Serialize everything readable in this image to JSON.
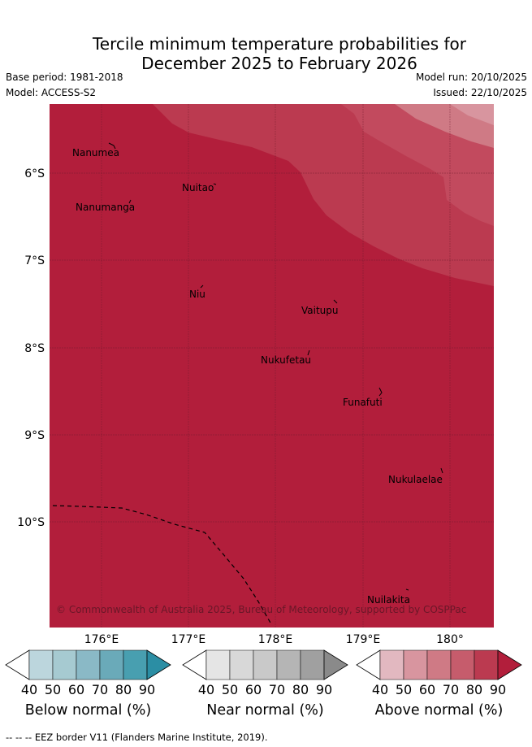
{
  "title": {
    "line1": "Tercile minimum temperature probabilities for",
    "line2": "December 2025 to February 2026"
  },
  "meta": {
    "base_period": "Base period: 1981-2018",
    "model": "Model: ACCESS-S2",
    "model_run": "Model run: 20/10/2025",
    "issued": "Issued: 22/10/2025"
  },
  "axes": {
    "lat_labels": [
      "6°S",
      "7°S",
      "8°S",
      "9°S",
      "10°S"
    ],
    "lon_labels": [
      "176°E",
      "177°E",
      "178°E",
      "179°E",
      "180°"
    ]
  },
  "places": [
    "Nanumea",
    "Nuitao",
    "Nanumanga",
    "Niu",
    "Vaitupu",
    "Nukufetau",
    "Funafuti",
    "Nukulaelae",
    "Nuilakita"
  ],
  "copyright": "© Commonwealth of Australia 2025, Bureau of Meteorology, supported by COSPPac",
  "colorbars": [
    {
      "name": "Below normal (%)",
      "ticks": [
        "40",
        "50",
        "60",
        "70",
        "80",
        "90"
      ],
      "colors": [
        "#ffffff",
        "#bcd6dd",
        "#a6cad1",
        "#8ab9c6",
        "#6aaab9",
        "#489fb0",
        "#2b8ea4"
      ]
    },
    {
      "name": "Near normal (%)",
      "ticks": [
        "40",
        "50",
        "60",
        "70",
        "80",
        "90"
      ],
      "colors": [
        "#ffffff",
        "#e5e5e5",
        "#d8d8d8",
        "#c9c9c9",
        "#b5b5b5",
        "#a0a0a0",
        "#8a8a8a"
      ]
    },
    {
      "name": "Above normal (%)",
      "ticks": [
        "40",
        "50",
        "60",
        "70",
        "80",
        "90"
      ],
      "colors": [
        "#ffffff",
        "#e2b8c0",
        "#d8959f",
        "#cf7a85",
        "#c65c6c",
        "#bb3a50",
        "#b21e3b"
      ]
    }
  ],
  "footer": "--  --  -- EEZ border V11 (Flanders Marine Institute, 2019)."
}
